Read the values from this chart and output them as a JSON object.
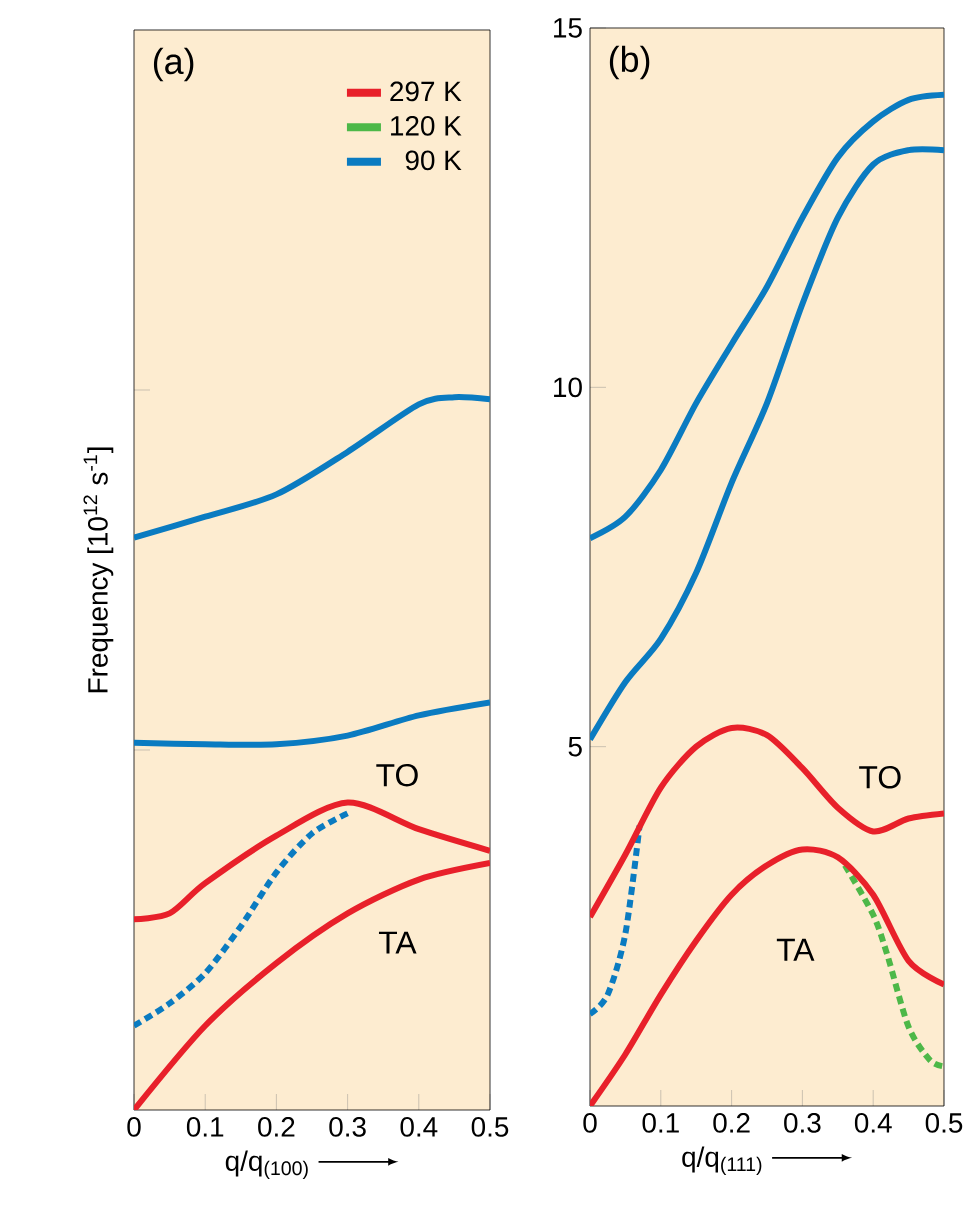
{
  "chart_data": [
    {
      "type": "line",
      "xlabel": "q/q$_{(100)}$",
      "ylabel": "Frequency [10$^{12}$ s$^{-1}$]",
      "xlim": [
        0,
        0.5
      ],
      "ylim": [
        0,
        15
      ],
      "xticks": [
        0,
        0.1,
        0.2,
        0.3,
        0.4,
        0.5
      ],
      "yticks": [
        5,
        10
      ],
      "tick_labels": "x",
      "legend": "top right",
      "grid": false,
      "annotations": [
        "(a)",
        "TO",
        "TA"
      ],
      "series": [
        {
          "name": "297 K",
          "color": "#e8202a",
          "line_style": "solid",
          "x": [
            0,
            0.05,
            0.1,
            0.2,
            0.3,
            0.4,
            0.5
          ],
          "values": [
            2.65,
            2.73,
            3.15,
            3.81,
            4.27,
            3.9,
            3.6
          ]
        },
        {
          "name": "120 K",
          "color": "#4db848",
          "line_style": "solid"
        },
        {
          "name": "90 K",
          "color": "#0a7bc1",
          "line_style": "solid",
          "x": [
            0,
            0.1,
            0.2,
            0.3,
            0.4,
            0.45,
            0.5
          ],
          "values": [
            7.95,
            8.24,
            8.55,
            9.14,
            9.8,
            9.9,
            9.87
          ]
        },
        {
          "color": "#e8202a",
          "line_style": "solid",
          "x": [
            0,
            0.1,
            0.2,
            0.3,
            0.4,
            0.5
          ],
          "values": [
            0,
            1.17,
            2.04,
            2.73,
            3.2,
            3.43
          ]
        },
        {
          "color": "#0a7bc1",
          "line_style": "solid",
          "x": [
            0,
            0.1,
            0.2,
            0.3,
            0.4,
            0.5
          ],
          "values": [
            5.1,
            5.08,
            5.08,
            5.2,
            5.48,
            5.66
          ]
        },
        {
          "color": "#0a7bc1",
          "line_style": "dashed",
          "x": [
            0,
            0.05,
            0.1,
            0.15,
            0.2,
            0.25,
            0.3
          ],
          "values": [
            1.17,
            1.48,
            1.9,
            2.55,
            3.3,
            3.84,
            4.12
          ]
        }
      ]
    },
    {
      "type": "line",
      "xlabel": "q/q$_{(111)}$",
      "xlim": [
        0,
        0.5
      ],
      "ylim": [
        0,
        15
      ],
      "xticks": [
        0,
        0.1,
        0.2,
        0.3,
        0.4,
        0.5
      ],
      "yticks": [
        5,
        10,
        15
      ],
      "grid": false,
      "annotations": [
        "(b)",
        "TO",
        "TA"
      ],
      "series": [
        {
          "color": "#e8202a",
          "line_style": "solid",
          "x": [
            0,
            0.05,
            0.1,
            0.15,
            0.2,
            0.25,
            0.3,
            0.35,
            0.4,
            0.45,
            0.5
          ],
          "values": [
            2.63,
            3.5,
            4.43,
            5.0,
            5.26,
            5.16,
            4.7,
            4.15,
            3.82,
            4.0,
            4.07
          ]
        },
        {
          "color": "#e8202a",
          "line_style": "solid",
          "x": [
            0,
            0.05,
            0.1,
            0.15,
            0.2,
            0.25,
            0.3,
            0.35,
            0.4,
            0.45,
            0.5
          ],
          "values": [
            0,
            0.72,
            1.55,
            2.3,
            2.94,
            3.35,
            3.57,
            3.46,
            2.94,
            2.02,
            1.69
          ]
        },
        {
          "color": "#4db848",
          "line_style": "dashed",
          "x": [
            0.36,
            0.4,
            0.42,
            0.45,
            0.48,
            0.5
          ],
          "values": [
            3.35,
            2.66,
            2.1,
            1.1,
            0.64,
            0.55
          ]
        },
        {
          "color": "#0a7bc1",
          "line_style": "solid",
          "x": [
            0,
            0.05,
            0.1,
            0.15,
            0.2,
            0.25,
            0.3,
            0.35,
            0.4,
            0.45,
            0.5
          ],
          "values": [
            7.9,
            8.2,
            8.85,
            9.78,
            10.6,
            11.4,
            12.36,
            13.2,
            13.7,
            14.0,
            14.07
          ]
        },
        {
          "color": "#0a7bc1",
          "line_style": "solid",
          "x": [
            0,
            0.05,
            0.1,
            0.15,
            0.2,
            0.25,
            0.3,
            0.35,
            0.4,
            0.45,
            0.5
          ],
          "values": [
            5.1,
            5.9,
            6.5,
            7.42,
            8.67,
            9.78,
            11.16,
            12.36,
            13.1,
            13.3,
            13.3
          ]
        },
        {
          "color": "#0a7bc1",
          "line_style": "dashed",
          "x": [
            0,
            0.025,
            0.05,
            0.07
          ],
          "values": [
            1.28,
            1.55,
            2.4,
            3.9
          ]
        }
      ]
    }
  ]
}
